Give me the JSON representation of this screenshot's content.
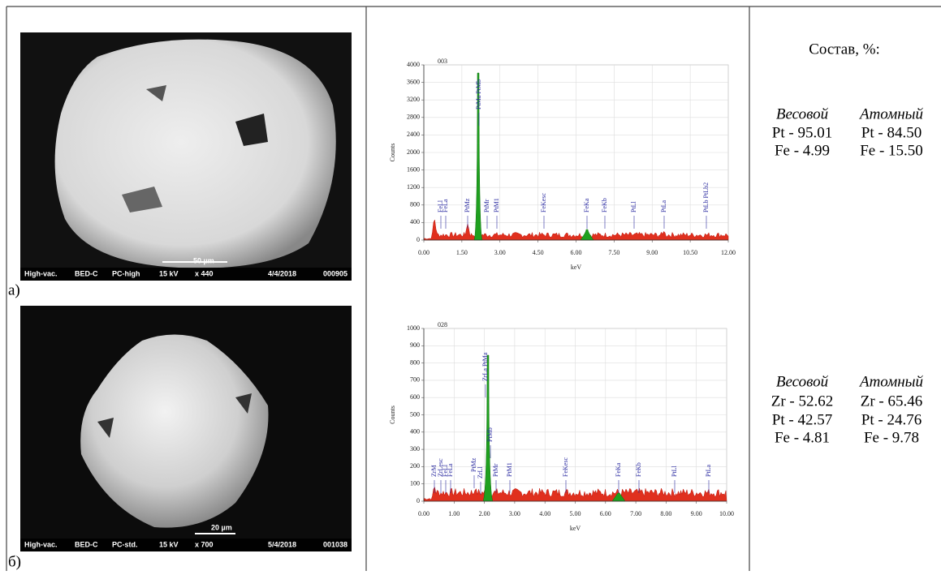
{
  "composition_title": "Состав, %:",
  "panel_a": {
    "caption": "а)",
    "sem": {
      "info": [
        "High-vac.",
        "BED-C",
        "PC-high",
        "15 kV",
        "x 440",
        "4/4/2018",
        "000905"
      ],
      "scale": "50 µm"
    },
    "spectrum": {
      "id": "003",
      "ylabel": "Counts",
      "xlabel": "keV",
      "xlim": [
        0,
        12
      ],
      "ylim": [
        0,
        4000
      ],
      "xticks": [
        {
          "value": 0,
          "label": "0.00"
        },
        {
          "value": 1.5,
          "label": "1.50"
        },
        {
          "value": 3,
          "label": "3.00"
        },
        {
          "value": 4.5,
          "label": "4.50"
        },
        {
          "value": 6,
          "label": "6.00"
        },
        {
          "value": 7.5,
          "label": "7.50"
        },
        {
          "value": 9,
          "label": "9.00"
        },
        {
          "value": 10.5,
          "label": "10.50"
        },
        {
          "value": 12,
          "label": "12.00"
        }
      ],
      "yticks": [
        0,
        400,
        800,
        1200,
        1600,
        2000,
        2400,
        2800,
        3200,
        3600,
        4000
      ],
      "peaks": [
        "FeLl",
        "FeLa",
        "PtMz",
        "PtMa PtMb",
        "PtMr",
        "PtM1",
        "FeKesc",
        "FeKa",
        "FeKb",
        "PtLl",
        "PtLa",
        "PtLb PtLb2"
      ]
    },
    "composition": {
      "columns": [
        "Весовой",
        "Атомный"
      ],
      "rows": [
        [
          "Pt - 95.01",
          "Pt - 84.50"
        ],
        [
          "Fe - 4.99",
          "Fe - 15.50"
        ]
      ]
    }
  },
  "panel_b": {
    "caption": "б)",
    "sem": {
      "info": [
        "High-vac.",
        "BED-C",
        "PC-std.",
        "15 kV",
        "x 700",
        "5/4/2018",
        "001038"
      ],
      "scale": "20 µm"
    },
    "spectrum": {
      "id": "028",
      "ylabel": "Counts",
      "xlabel": "keV",
      "xlim": [
        0,
        10
      ],
      "ylim": [
        0,
        1000
      ],
      "xticks": [
        {
          "value": 0,
          "label": "0.00"
        },
        {
          "value": 1,
          "label": "1.00"
        },
        {
          "value": 2,
          "label": "2.00"
        },
        {
          "value": 3,
          "label": "3.00"
        },
        {
          "value": 4,
          "label": "4.00"
        },
        {
          "value": 5,
          "label": "5.00"
        },
        {
          "value": 6,
          "label": "6.00"
        },
        {
          "value": 7,
          "label": "7.00"
        },
        {
          "value": 8,
          "label": "8.00"
        },
        {
          "value": 9,
          "label": "9.00"
        },
        {
          "value": 10,
          "label": "10.00"
        }
      ],
      "yticks": [
        0,
        100,
        200,
        300,
        400,
        500,
        600,
        700,
        800,
        900,
        1000
      ],
      "peaks": [
        "ZrM",
        "ZrLesc",
        "FeLl",
        "FeLa",
        "PtMz",
        "ZrLl",
        "ZrLa PtMa",
        "PtMb",
        "PtMr",
        "PtM1",
        "FeKesc",
        "FeKa",
        "FeKb",
        "PtLl",
        "PtLa"
      ]
    },
    "composition": {
      "columns": [
        "Весовой",
        "Атомный"
      ],
      "rows": [
        [
          "Zr - 52.62",
          "Zr - 65.46"
        ],
        [
          "Pt - 42.57",
          "Pt - 24.76"
        ],
        [
          "Fe - 4.81",
          "Fe - 9.78"
        ]
      ]
    }
  }
}
